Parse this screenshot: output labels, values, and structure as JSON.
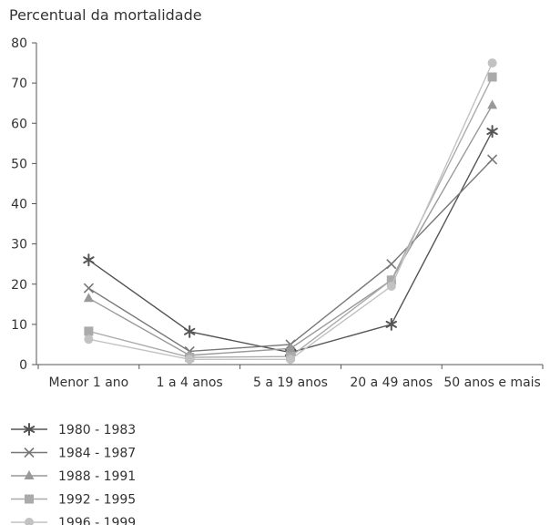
{
  "chart_data": {
    "type": "line",
    "ylabel": "Percentual da mortalidade",
    "xlabel": "",
    "ylim": [
      0,
      80
    ],
    "yticks": [
      0,
      10,
      20,
      30,
      40,
      50,
      60,
      70,
      80
    ],
    "grid": false,
    "legend_position": "bottom-left",
    "categories": [
      "Menor 1 ano",
      "1 a 4 anos",
      "5 a 19 anos",
      "20 a 49 anos",
      "50 anos e mais"
    ],
    "series": [
      {
        "name": "1980 - 1983",
        "marker": "star",
        "color": "#555555",
        "values": [
          26,
          8.2,
          3.0,
          10.0,
          58.0
        ]
      },
      {
        "name": "1984 - 1987",
        "marker": "x",
        "color": "#777777",
        "values": [
          19,
          3.3,
          5.0,
          25.0,
          51.0
        ]
      },
      {
        "name": "1988 - 1991",
        "marker": "triangle",
        "color": "#999999",
        "values": [
          16.5,
          2.3,
          4.0,
          21.0,
          64.5
        ]
      },
      {
        "name": "1992 - 1995",
        "marker": "square",
        "color": "#aaaaaa",
        "values": [
          8.3,
          1.8,
          2.0,
          21.0,
          71.5
        ]
      },
      {
        "name": "1996 - 1999",
        "marker": "circle",
        "color": "#c2c2c2",
        "values": [
          6.3,
          1.3,
          1.3,
          19.5,
          75.0
        ]
      }
    ]
  }
}
